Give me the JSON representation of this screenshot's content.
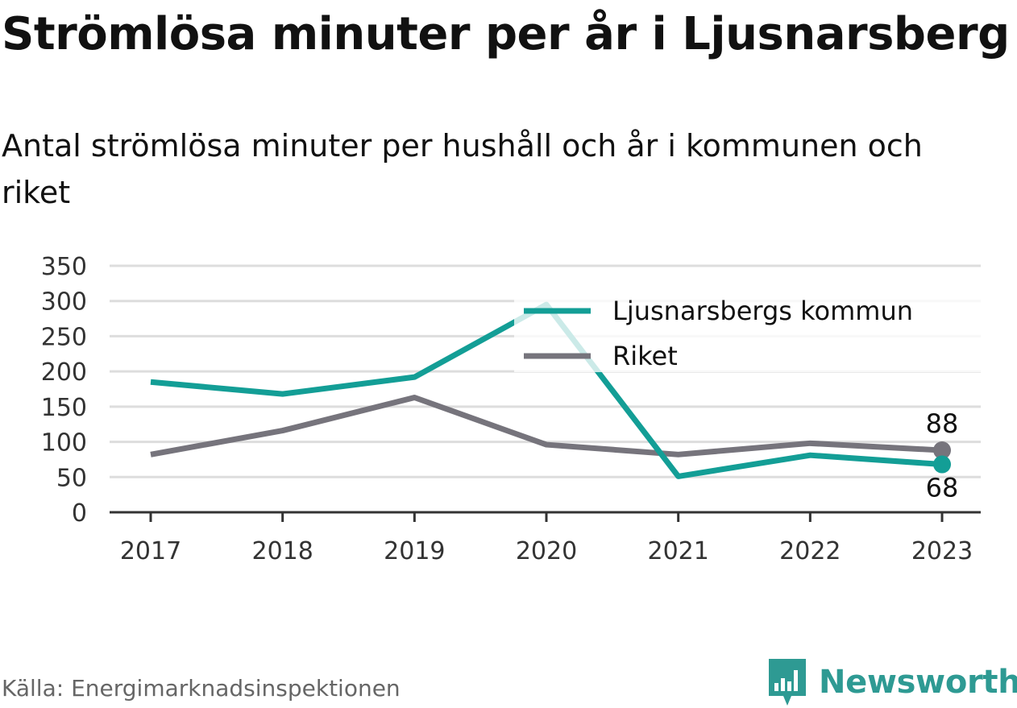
{
  "title": "Strömlösa minuter per år i Ljusnarsberg",
  "subtitle": "Antal strömlösa minuter per hushåll och år i kommunen och riket",
  "source": "Källa: Energimarknadsinspektionen",
  "brand": "Newsworthy",
  "colors": {
    "kommun": "#139e96",
    "riket": "#76747c",
    "grid": "#dddddd",
    "axis": "#333333",
    "brand": "#2e9a93"
  },
  "chart_data": {
    "type": "line",
    "title": "Strömlösa minuter per år i Ljusnarsberg",
    "subtitle": "Antal strömlösa minuter per hushåll och år i kommunen och riket",
    "x": [
      "2017",
      "2018",
      "2019",
      "2020",
      "2021",
      "2022",
      "2023"
    ],
    "ylim": [
      0,
      350
    ],
    "yticks": [
      0,
      50,
      100,
      150,
      200,
      250,
      300,
      350
    ],
    "grid": true,
    "legend": "top-right",
    "series": [
      {
        "name": "Ljusnarsbergs kommun",
        "key": "kommun",
        "values": [
          185,
          168,
          192,
          295,
          51,
          81,
          68
        ]
      },
      {
        "name": "Riket",
        "key": "riket",
        "values": [
          82,
          116,
          163,
          96,
          82,
          98,
          88
        ]
      }
    ],
    "end_labels": [
      {
        "series": "riket",
        "text": "88",
        "position": "above"
      },
      {
        "series": "kommun",
        "text": "68",
        "position": "below"
      }
    ]
  }
}
